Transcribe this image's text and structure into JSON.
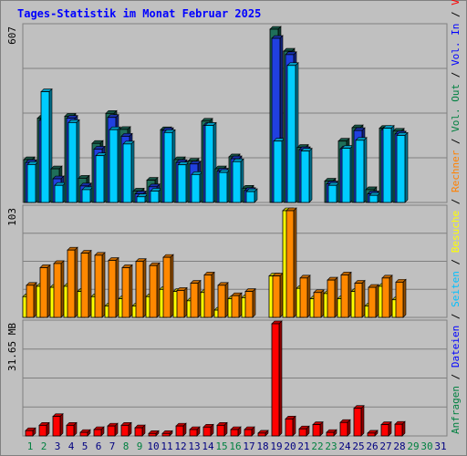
{
  "title": "Tages-Statistik im Monat Februar 2025",
  "chart_data": {
    "type": "bar",
    "title": "Tages-Statistik im Monat Februar 2025",
    "categories": [
      "1",
      "2",
      "3",
      "4",
      "5",
      "6",
      "7",
      "8",
      "9",
      "10",
      "11",
      "12",
      "13",
      "14",
      "15",
      "16",
      "17",
      "18",
      "19",
      "20",
      "21",
      "22",
      "23",
      "24",
      "25",
      "26",
      "27",
      "28",
      "29",
      "30",
      "31"
    ],
    "weekend_days": [
      "1",
      "2",
      "8",
      "9",
      "15",
      "16",
      "22",
      "23",
      "29",
      "30"
    ],
    "panels": [
      {
        "id": "requests",
        "scale_label": "607",
        "ylim": [
          0,
          607
        ],
        "series": [
          {
            "name": "Anfragen",
            "color": "#1f6f5a",
            "values": [
              150,
              295,
              118,
              302,
              85,
              207,
              312,
              256,
              40,
              78,
              255,
              150,
              145,
              285,
              118,
              160,
              50,
              0,
              607,
              530,
              193,
              0,
              75,
              215,
              262,
              45,
              260,
              250,
              0,
              0,
              0
            ]
          },
          {
            "name": "Dateien",
            "color": "#2040e0",
            "values": [
              140,
              288,
              83,
              295,
              58,
              187,
              298,
              232,
              30,
              55,
              252,
              140,
              135,
              270,
              110,
              153,
              42,
              0,
              575,
              518,
              185,
              0,
              65,
              188,
              252,
              30,
              255,
              240,
              0,
              0,
              0
            ]
          },
          {
            "name": "Seiten",
            "color": "#00ccff",
            "values": [
              133,
              388,
              60,
              280,
              45,
              164,
              255,
              205,
              20,
              40,
              245,
              132,
              98,
              270,
              105,
              143,
              38,
              0,
              215,
              480,
              180,
              0,
              60,
              190,
              218,
              25,
              260,
              235,
              0,
              0,
              0
            ]
          }
        ]
      },
      {
        "id": "visits",
        "scale_label": "103",
        "ylim": [
          0,
          103
        ],
        "series": [
          {
            "name": "Besuche",
            "color": "#ffff00",
            "values": [
              20,
              30,
              29,
              30,
              25,
              20,
              11,
              18,
              11,
              20,
              27,
              25,
              16,
              24,
              7,
              18,
              19,
              0,
              40,
              103,
              28,
              18,
              23,
              18,
              25,
              11,
              30,
              17,
              0,
              0,
              0
            ]
          },
          {
            "name": "Rechner",
            "color": "#ff8800",
            "values": [
              31,
              48,
              52,
              65,
              62,
              60,
              55,
              48,
              54,
              50,
              58,
              26,
              33,
              41,
              31,
              21,
              25,
              0,
              40,
              103,
              38,
              24,
              36,
              41,
              33,
              29,
              38,
              34,
              0,
              0,
              0
            ]
          }
        ]
      },
      {
        "id": "volume",
        "scale_label": "31.65 MB",
        "ylim": [
          0,
          31.65
        ],
        "series": [
          {
            "name": "Volumen",
            "color": "#ff0000",
            "values": [
              1.5,
              3.0,
              5.5,
              3.0,
              1.0,
              1.8,
              2.8,
              3.0,
              2.3,
              0.7,
              0.7,
              2.8,
              1.8,
              2.5,
              3.0,
              1.8,
              1.8,
              0.8,
              31.65,
              4.8,
              2.0,
              3.2,
              1.0,
              3.8,
              7.8,
              0.8,
              3.2,
              3.3,
              0,
              0,
              0
            ]
          }
        ]
      }
    ],
    "right_legend": [
      {
        "text": "Anfragen",
        "color": "#008040"
      },
      {
        "text": "Dateien",
        "color": "#0000ff"
      },
      {
        "text": "Seiten",
        "color": "#00c0ff"
      },
      {
        "text": "Besuche",
        "color": "#ffff00"
      },
      {
        "text": "Rechner",
        "color": "#ff8000"
      },
      {
        "text": "Vol. Out",
        "color": "#008040"
      },
      {
        "text": "Vol. In",
        "color": "#0000ff"
      },
      {
        "text": "Volumen",
        "color": "#ff0000"
      }
    ],
    "grid": true,
    "weekday_tick_color": "#000080",
    "weekend_tick_color": "#008040"
  }
}
